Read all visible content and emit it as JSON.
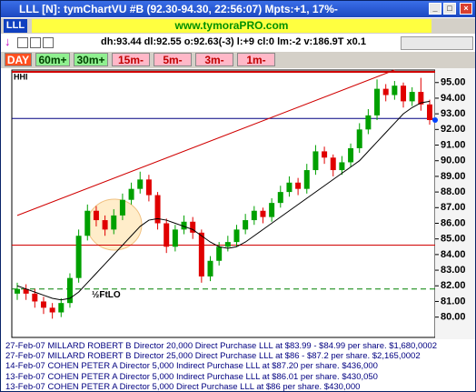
{
  "window": {
    "title": "LLL [N]: tymChartVU #B (92.30-94.30, 22:56:07) Mpts:+1, 17%-"
  },
  "toolbar": {
    "symbol": "LLL",
    "site": "www.tymoraPRO.com",
    "status": "dh:93.44 dl:92.55 o:92.63(-3) l:+9 cl:0 lm:-2 v:186.9T x0.1",
    "buttons": [
      "DAY",
      "60m+",
      "30m+",
      "15m-",
      "5m-",
      "3m-",
      "1m-"
    ]
  },
  "chart_data": {
    "type": "candlestick",
    "labels": [
      "HHI",
      "½FtLO"
    ],
    "open": [
      81.5,
      81.8,
      81.5,
      81.0,
      80.6,
      80.3,
      80.9,
      82.5,
      85.2,
      86.8,
      86.2,
      85.6,
      86.5,
      87.5,
      88.2,
      88.8,
      87.8,
      86.0,
      84.5,
      85.6,
      86.1,
      85.4,
      82.6,
      83.6,
      84.5,
      84.8,
      85.6,
      86.2,
      86.8,
      86.4,
      87.3,
      88.0,
      88.6,
      88.2,
      89.4,
      90.6,
      90.2,
      89.4,
      89.9,
      90.8,
      92.0,
      92.9,
      94.6,
      94.2,
      94.8,
      93.8,
      94.4,
      93.6
    ],
    "high": [
      82.2,
      82.1,
      81.8,
      81.3,
      80.9,
      81.2,
      82.8,
      85.6,
      87.2,
      87.1,
      86.5,
      86.9,
      87.9,
      88.6,
      89.3,
      89.1,
      88.0,
      86.3,
      85.9,
      86.5,
      86.4,
      85.6,
      83.9,
      84.8,
      85.2,
      85.9,
      86.6,
      87.1,
      87.0,
      87.6,
      88.4,
      89.0,
      88.9,
      89.8,
      91.0,
      90.9,
      90.4,
      90.3,
      91.1,
      92.4,
      93.3,
      95.2,
      94.9,
      95.1,
      95.0,
      94.7,
      95.3,
      93.9
    ],
    "low": [
      81.1,
      81.1,
      80.6,
      80.2,
      79.9,
      80.0,
      80.6,
      82.2,
      84.9,
      85.8,
      85.2,
      85.3,
      86.2,
      87.2,
      87.9,
      87.4,
      85.6,
      84.1,
      84.2,
      85.3,
      85.0,
      82.2,
      82.3,
      83.3,
      84.2,
      84.5,
      85.3,
      85.9,
      86.0,
      86.1,
      87.0,
      87.7,
      87.8,
      87.9,
      89.1,
      89.8,
      89.0,
      89.1,
      89.6,
      90.5,
      91.7,
      92.6,
      93.8,
      93.9,
      93.4,
      93.5,
      93.2,
      92.3
    ],
    "close": [
      81.8,
      81.5,
      81.0,
      80.6,
      80.3,
      80.9,
      82.5,
      85.2,
      86.8,
      86.2,
      85.6,
      86.5,
      87.5,
      88.2,
      88.8,
      87.8,
      86.0,
      84.5,
      85.6,
      86.1,
      85.4,
      82.6,
      83.6,
      84.5,
      84.8,
      85.6,
      86.2,
      86.8,
      86.4,
      87.3,
      88.0,
      88.6,
      88.2,
      89.4,
      90.6,
      90.2,
      89.4,
      89.9,
      90.8,
      92.0,
      92.9,
      94.6,
      94.2,
      94.8,
      93.8,
      94.4,
      93.6,
      92.6
    ],
    "ma": [
      82.0,
      81.8,
      81.6,
      81.4,
      81.2,
      81.1,
      81.2,
      81.6,
      82.2,
      82.8,
      83.4,
      84.0,
      84.6,
      85.2,
      85.8,
      86.2,
      86.3,
      86.2,
      86.0,
      85.8,
      85.6,
      85.2,
      84.8,
      84.5,
      84.4,
      84.5,
      84.8,
      85.2,
      85.6,
      86.0,
      86.4,
      86.8,
      87.2,
      87.6,
      88.0,
      88.4,
      88.8,
      89.2,
      89.6,
      90.0,
      90.6,
      91.2,
      91.8,
      92.4,
      93.0,
      93.4,
      93.7,
      93.8
    ],
    "up_color": "#00a000",
    "down_color": "#e00000",
    "ma_color": "#000000",
    "hlines": [
      {
        "value": 92.7,
        "color": "#000080"
      },
      {
        "value": 84.6,
        "color": "#d00000"
      },
      {
        "value": 81.8,
        "color": "#008000"
      }
    ],
    "trendline": {
      "x": [
        0,
        43
      ],
      "y": [
        86.5,
        95.8
      ],
      "color": "#d00000"
    },
    "ylim": [
      78.7,
      95.8
    ],
    "yticks": [
      {
        "value": 80,
        "label": "80.00"
      },
      {
        "value": 81,
        "label": "81.00"
      },
      {
        "value": 82,
        "label": "82.00"
      },
      {
        "value": 83,
        "label": "83.00"
      },
      {
        "value": 84,
        "label": "84.00"
      },
      {
        "value": 85,
        "label": "85.00"
      },
      {
        "value": 86,
        "label": "86.00"
      },
      {
        "value": 87,
        "label": "87.00"
      },
      {
        "value": 88,
        "label": "88.00"
      },
      {
        "value": 89,
        "label": "89.00"
      },
      {
        "value": 90,
        "label": "90.00"
      },
      {
        "value": 91,
        "label": "91.00"
      },
      {
        "value": 92,
        "label": "92.00"
      },
      {
        "value": 93,
        "label": "93.00"
      },
      {
        "value": 94,
        "label": "94.00"
      },
      {
        "value": 95,
        "label": "95.00"
      }
    ]
  },
  "footer": [
    "27-Feb-07 MILLARD ROBERT B Director 20,000 Direct Purchase LLL at $83.99 - $84.99 per share. $1,680,0002",
    "27-Feb-07 MILLARD ROBERT B Director 25,000 Direct Purchase LLL at $86 - $87.2 per share. $2,165,0002",
    "14-Feb-07 COHEN PETER A Director 5,000 Indirect Purchase LLL at $87.20 per share. $436,000",
    "13-Feb-07 COHEN PETER A Director 5,000 Indirect Purchase LLL at $86.01 per share. $430,050",
    "13-Feb-07 COHEN PETER A Director 5,000 Direct Purchase LLL at $86 per share. $430,000"
  ]
}
